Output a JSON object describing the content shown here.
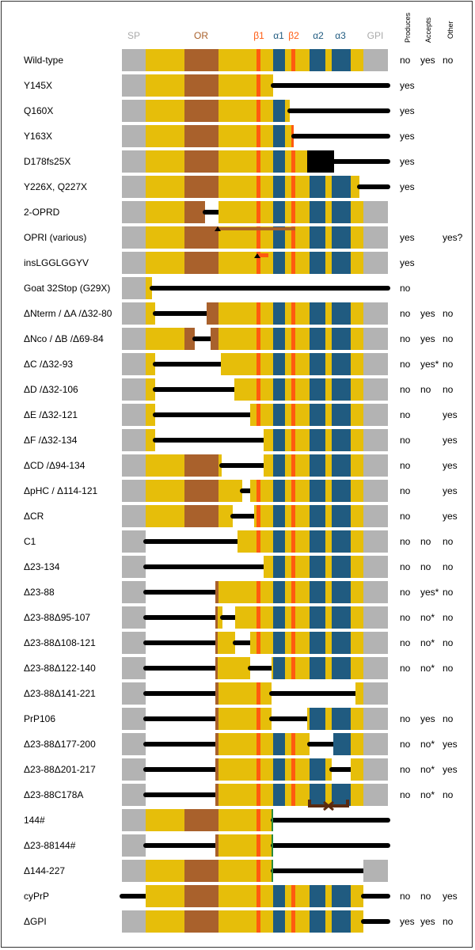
{
  "header": {
    "SP": "SP",
    "OR": "OR",
    "b1": "β1",
    "a1": "α1",
    "b2": "β2",
    "a2": "α2",
    "a3": "α3",
    "GPI": "GPI",
    "produces": "Produces",
    "accepts": "Accepts",
    "other": "Other"
  },
  "colors": {
    "sp": "#b3b3b3",
    "gold": "#e6be0a",
    "or": "#a9612c",
    "beta": "#ff5a10",
    "helix": "#205b80",
    "line": "#000000",
    "sp_label": "#aaaaaa",
    "or_label": "#a9612c",
    "beta_label": "#ff5a10",
    "helix_label": "#205b80"
  },
  "rows": [
    {
      "label": "Wild-type",
      "produces": "no",
      "accepts": "yes",
      "other": "no"
    },
    {
      "label": "Y145X",
      "produces": "yes",
      "accepts": "",
      "other": ""
    },
    {
      "label": "Q160X",
      "produces": "yes",
      "accepts": "",
      "other": ""
    },
    {
      "label": "Y163X",
      "produces": "yes",
      "accepts": "",
      "other": ""
    },
    {
      "label": "D178fs25X",
      "produces": "yes",
      "accepts": "",
      "other": ""
    },
    {
      "label": "Y226X, Q227X",
      "produces": "yes",
      "accepts": "",
      "other": ""
    },
    {
      "label": "2-OPRD",
      "produces": "",
      "accepts": "",
      "other": ""
    },
    {
      "label": "OPRI (various)",
      "produces": "yes",
      "accepts": "",
      "other": "yes?"
    },
    {
      "label": "insLGGLGGYV",
      "produces": "yes",
      "accepts": "",
      "other": ""
    },
    {
      "label": "Goat 32Stop (G29X)",
      "produces": "no",
      "accepts": "",
      "other": ""
    },
    {
      "label": "ΔNterm / ΔA /Δ32-80",
      "produces": "no",
      "accepts": "yes",
      "other": "no"
    },
    {
      "label": "ΔNco / ΔB /Δ69-84",
      "produces": "no",
      "accepts": "yes",
      "other": "no"
    },
    {
      "label": "ΔC /Δ32-93",
      "produces": "no",
      "accepts": "yes*",
      "other": "no"
    },
    {
      "label": "ΔD /Δ32-106",
      "produces": "no",
      "accepts": "no",
      "other": "no"
    },
    {
      "label": "ΔE /Δ32-121",
      "produces": "no",
      "accepts": "",
      "other": "yes"
    },
    {
      "label": "ΔF /Δ32-134",
      "produces": "no",
      "accepts": "",
      "other": "yes"
    },
    {
      "label": "ΔCD /Δ94-134",
      "produces": "no",
      "accepts": "",
      "other": "yes"
    },
    {
      "label": "ΔpHC / Δ114-121",
      "produces": "no",
      "accepts": "",
      "other": "yes"
    },
    {
      "label": "ΔCR",
      "produces": "no",
      "accepts": "",
      "other": "yes"
    },
    {
      "label": "C1",
      "produces": "no",
      "accepts": "no",
      "other": "no"
    },
    {
      "label": "Δ23-134",
      "produces": "no",
      "accepts": "no",
      "other": "no"
    },
    {
      "label": "Δ23-88",
      "produces": "no",
      "accepts": "yes*",
      "other": "no"
    },
    {
      "label": "Δ23-88Δ95-107",
      "produces": "no",
      "accepts": "no*",
      "other": "no"
    },
    {
      "label": "Δ23-88Δ108-121",
      "produces": "no",
      "accepts": "no*",
      "other": "no"
    },
    {
      "label": "Δ23-88Δ122-140",
      "produces": "no",
      "accepts": "no*",
      "other": "no"
    },
    {
      "label": "Δ23-88Δ141-221",
      "produces": "",
      "accepts": "",
      "other": ""
    },
    {
      "label": "PrP106",
      "produces": "no",
      "accepts": "yes",
      "other": "no"
    },
    {
      "label": "Δ23-88Δ177-200",
      "produces": "no",
      "accepts": "no*",
      "other": "yes"
    },
    {
      "label": "Δ23-88Δ201-217",
      "produces": "no",
      "accepts": "no*",
      "other": "yes"
    },
    {
      "label": "Δ23-88C178A",
      "produces": "no",
      "accepts": "no*",
      "other": "no"
    },
    {
      "label": "144#",
      "produces": "",
      "accepts": "",
      "other": ""
    },
    {
      "label": "Δ23-88144#",
      "produces": "",
      "accepts": "",
      "other": ""
    },
    {
      "label": "Δ144-227",
      "produces": "",
      "accepts": "",
      "other": ""
    },
    {
      "label": "cyPrP",
      "produces": "no",
      "accepts": "no",
      "other": "yes"
    },
    {
      "label": "ΔGPI",
      "produces": "yes",
      "accepts": "yes",
      "other": "no"
    }
  ]
}
